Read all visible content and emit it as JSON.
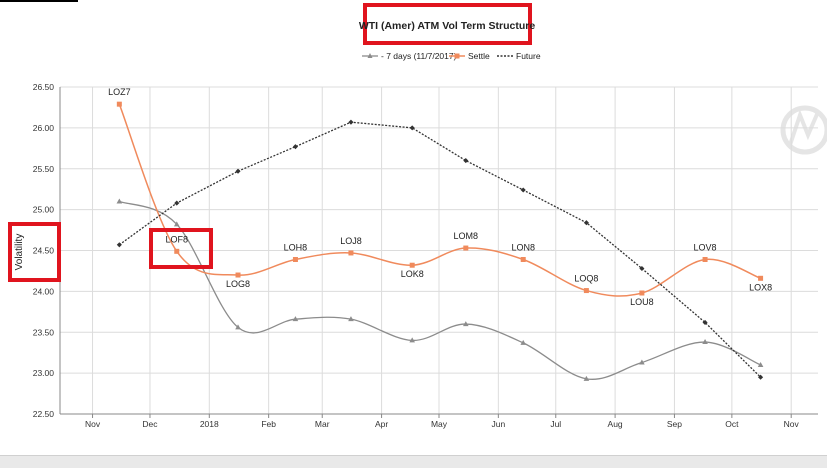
{
  "chart_data": {
    "type": "line",
    "title": "WTI (Amer) ATM Vol Term Structure",
    "ylabel": "Volatility",
    "xlabel": "",
    "ylim": [
      22.5,
      26.5
    ],
    "yticks": [
      "22.50",
      "23.00",
      "23.50",
      "24.00",
      "24.50",
      "25.00",
      "25.50",
      "26.00",
      "26.50"
    ],
    "ytick_values": [
      22.5,
      23.0,
      23.5,
      24.0,
      24.5,
      25.0,
      25.5,
      26.0,
      26.5
    ],
    "xlim": [
      "2017-10-15",
      "2018-11-15"
    ],
    "xticks": [
      {
        "label": "Nov",
        "date": "2017-11-01"
      },
      {
        "label": "Dec",
        "date": "2017-12-01"
      },
      {
        "label": "2018",
        "date": "2018-01-01"
      },
      {
        "label": "Feb",
        "date": "2018-02-01"
      },
      {
        "label": "Mar",
        "date": "2018-03-01"
      },
      {
        "label": "Apr",
        "date": "2018-04-01"
      },
      {
        "label": "May",
        "date": "2018-05-01"
      },
      {
        "label": "Jun",
        "date": "2018-06-01"
      },
      {
        "label": "Jul",
        "date": "2018-07-01"
      },
      {
        "label": "Aug",
        "date": "2018-08-01"
      },
      {
        "label": "Sep",
        "date": "2018-09-01"
      },
      {
        "label": "Oct",
        "date": "2018-10-01"
      },
      {
        "label": "Nov",
        "date": "2018-11-01"
      }
    ],
    "grid": true,
    "legend_position": "top-center",
    "x": [
      "2017-11-15",
      "2017-12-15",
      "2018-01-16",
      "2018-02-15",
      "2018-03-16",
      "2018-04-17",
      "2018-05-15",
      "2018-06-14",
      "2018-07-17",
      "2018-08-15",
      "2018-09-17",
      "2018-10-16"
    ],
    "series": [
      {
        "name": "- 7 days (11/7/2017)",
        "color": "#8c8c8c",
        "style": "solid-triangle",
        "values": [
          25.1,
          24.82,
          23.56,
          23.66,
          23.66,
          23.4,
          23.6,
          23.37,
          22.93,
          23.13,
          23.38,
          23.1
        ]
      },
      {
        "name": "Settle",
        "color": "#f08a5c",
        "style": "solid-square",
        "values": [
          26.29,
          24.49,
          24.2,
          24.39,
          24.47,
          24.32,
          24.53,
          24.39,
          24.01,
          23.98,
          24.39,
          24.16
        ],
        "point_labels": [
          "LOZ7",
          "LOF8",
          "LOG8",
          "LOH8",
          "LOJ8",
          "LOK8",
          "LOM8",
          "LON8",
          "LOQ8",
          "LOU8",
          "LOV8",
          "LOX8"
        ]
      },
      {
        "name": "Future",
        "color": "#333333",
        "style": "dotted-diamond",
        "values": [
          24.57,
          25.08,
          25.47,
          25.77,
          26.07,
          26.0,
          25.6,
          25.24,
          24.84,
          24.28,
          23.62,
          22.95
        ]
      }
    ]
  }
}
